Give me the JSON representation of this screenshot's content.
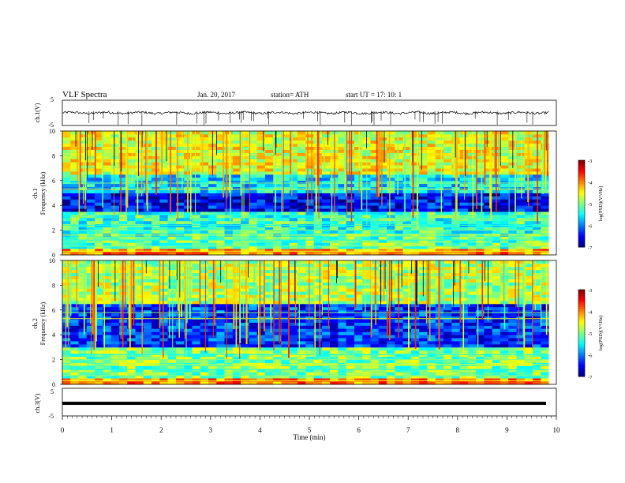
{
  "header": {
    "title": "VLF  Spectra",
    "date": "Jan. 20, 2017",
    "station": "station= ATH",
    "start": "start  UT  =    17: 10: 1"
  },
  "chart_data": [
    {
      "type": "line",
      "panel": "ch1",
      "ylabel": "ch.1(V)",
      "ylim": [
        -5,
        5
      ],
      "yticks": [
        "5",
        "-5"
      ],
      "xlim": [
        0,
        10
      ],
      "series": [
        {
          "values_approx": "noisy waveform centred near 0 V with sparse downward spikes",
          "color": "#000000"
        }
      ]
    },
    {
      "type": "heatmap",
      "panel": "ch2-spectrogram",
      "ylabel": [
        "ch.1",
        "Frequency (kHz)"
      ],
      "ylim": [
        0,
        10
      ],
      "yticks": [
        "0",
        "2",
        "4",
        "6",
        "8",
        "10"
      ],
      "xlim": [
        0,
        9.85
      ],
      "colorbar": {
        "label": "log(PSD)(V²/Hz)",
        "range": [
          -7,
          -3
        ],
        "ticks": [
          "-3",
          "-4",
          "-5",
          "-6",
          "-7"
        ]
      },
      "bands": [
        {
          "f": [
            0.0,
            0.5
          ],
          "level": -4.0
        },
        {
          "f": [
            0.5,
            1.5
          ],
          "level": -5.1
        },
        {
          "f": [
            1.5,
            3.5
          ],
          "level": -5.3
        },
        {
          "f": [
            3.5,
            5.0
          ],
          "level": -6.5
        },
        {
          "f": [
            5.0,
            6.5
          ],
          "level": -5.6
        },
        {
          "f": [
            6.5,
            10.0
          ],
          "level": -4.6
        }
      ]
    },
    {
      "type": "heatmap",
      "panel": "ch2b-spectrogram",
      "ylabel": [
        "ch.2",
        "Frequency (kHz)"
      ],
      "ylim": [
        0,
        10
      ],
      "yticks": [
        "0",
        "2",
        "4",
        "6",
        "8",
        "10"
      ],
      "xlim": [
        0,
        9.85
      ],
      "colorbar": {
        "label": "log(PSD)(V²/Hz)",
        "range": [
          -7,
          -3
        ],
        "ticks": [
          "-3",
          "-4",
          "-5",
          "-6",
          "-7"
        ]
      },
      "bands": [
        {
          "f": [
            0.0,
            0.5
          ],
          "level": -4.0
        },
        {
          "f": [
            0.5,
            1.8
          ],
          "level": -5.0
        },
        {
          "f": [
            1.8,
            3.0
          ],
          "level": -5.0
        },
        {
          "f": [
            3.0,
            4.5
          ],
          "level": -6.3
        },
        {
          "f": [
            4.5,
            6.5
          ],
          "level": -6.3
        },
        {
          "f": [
            6.5,
            10.0
          ],
          "level": -4.8
        }
      ]
    },
    {
      "type": "line",
      "panel": "ch3",
      "ylabel": "ch.3(V)",
      "ylim": [
        -5,
        5
      ],
      "yticks": [
        "5",
        "-5"
      ],
      "xlim": [
        0,
        10
      ],
      "series": [
        {
          "values_approx": "constant near -1 V",
          "color": "#000000"
        }
      ]
    }
  ],
  "xaxis": {
    "label": "Time  (min)",
    "ticks": [
      "0",
      "1",
      "2",
      "3",
      "4",
      "5",
      "6",
      "7",
      "8",
      "9",
      "10"
    ],
    "range": [
      0,
      10
    ]
  }
}
